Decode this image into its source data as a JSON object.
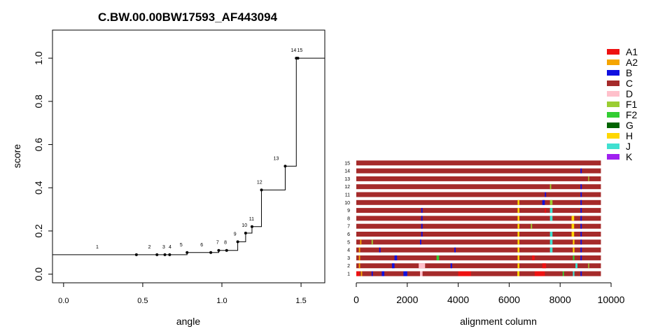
{
  "colors": {
    "A1": "#ee1111",
    "A2": "#f5a500",
    "B": "#1010e0",
    "C": "#a52a2a",
    "D": "#ffc0cb",
    "F1": "#9acd32",
    "F2": "#32cd32",
    "G": "#006400",
    "H": "#ffd700",
    "J": "#40e0d0",
    "K": "#a020f0"
  },
  "chart_data": [
    {
      "type": "line",
      "step": true,
      "title": "C.BW.00.00BW17593_AF443094",
      "xlabel": "angle",
      "ylabel": "score",
      "xlim": [
        -0.07,
        1.65
      ],
      "ylim": [
        -0.04,
        1.13
      ],
      "xticks": [
        "0.0",
        "0.5",
        "1.0",
        "1.5"
      ],
      "yticks": [
        "0.0",
        "0.2",
        "0.4",
        "0.6",
        "0.8",
        "1.0"
      ],
      "points": [
        {
          "label": "1",
          "x": 0.46,
          "y": 0.09
        },
        {
          "label": "2",
          "x": 0.59,
          "y": 0.09
        },
        {
          "label": "3",
          "x": 0.64,
          "y": 0.09
        },
        {
          "label": "4",
          "x": 0.67,
          "y": 0.09
        },
        {
          "label": "5",
          "x": 0.78,
          "y": 0.1
        },
        {
          "label": "6",
          "x": 0.93,
          "y": 0.1
        },
        {
          "label": "7",
          "x": 0.98,
          "y": 0.11
        },
        {
          "label": "8",
          "x": 1.03,
          "y": 0.11
        },
        {
          "label": "9",
          "x": 1.1,
          "y": 0.15
        },
        {
          "label": "10",
          "x": 1.15,
          "y": 0.19
        },
        {
          "label": "11",
          "x": 1.19,
          "y": 0.22
        },
        {
          "label": "12",
          "x": 1.25,
          "y": 0.39
        },
        {
          "label": "13",
          "x": 1.4,
          "y": 0.5
        },
        {
          "label": "14",
          "x": 1.47,
          "y": 1.0
        },
        {
          "label": "15",
          "x": 1.48,
          "y": 1.0
        }
      ]
    },
    {
      "type": "bar",
      "orientation": "horizontal",
      "xlabel": "alignment column",
      "xlim": [
        0,
        10000
      ],
      "xticks": [
        "0",
        "2000",
        "4000",
        "6000",
        "8000",
        "10000"
      ],
      "row_labels": [
        "1",
        "2",
        "3",
        "4",
        "5",
        "6",
        "7",
        "8",
        "9",
        "10",
        "11",
        "12",
        "13",
        "14",
        "15"
      ],
      "row_end": 9600,
      "base_subtype": "C",
      "legend": [
        "A1",
        "A2",
        "B",
        "C",
        "D",
        "F1",
        "F2",
        "G",
        "H",
        "J",
        "K"
      ],
      "segments": [
        {
          "row": 1,
          "from": 0,
          "to": 130,
          "subtype": "A1"
        },
        {
          "row": 1,
          "from": 180,
          "to": 230,
          "subtype": "A2"
        },
        {
          "row": 1,
          "from": 600,
          "to": 650,
          "subtype": "B"
        },
        {
          "row": 1,
          "from": 1000,
          "to": 1100,
          "subtype": "B"
        },
        {
          "row": 1,
          "from": 1850,
          "to": 2000,
          "subtype": "B"
        },
        {
          "row": 1,
          "from": 2500,
          "to": 2600,
          "subtype": "D"
        },
        {
          "row": 1,
          "from": 4000,
          "to": 4500,
          "subtype": "A1"
        },
        {
          "row": 1,
          "from": 6320,
          "to": 6400,
          "subtype": "H"
        },
        {
          "row": 1,
          "from": 7000,
          "to": 7400,
          "subtype": "A1"
        },
        {
          "row": 1,
          "from": 8100,
          "to": 8150,
          "subtype": "F2"
        },
        {
          "row": 1,
          "from": 8500,
          "to": 8560,
          "subtype": "J"
        },
        {
          "row": 1,
          "from": 8800,
          "to": 8850,
          "subtype": "B"
        },
        {
          "row": 2,
          "from": 100,
          "to": 150,
          "subtype": "A2"
        },
        {
          "row": 2,
          "from": 1400,
          "to": 1500,
          "subtype": "B"
        },
        {
          "row": 2,
          "from": 2450,
          "to": 2700,
          "subtype": "D"
        },
        {
          "row": 2,
          "from": 3700,
          "to": 3760,
          "subtype": "B"
        },
        {
          "row": 2,
          "from": 6330,
          "to": 6400,
          "subtype": "H"
        },
        {
          "row": 2,
          "from": 7300,
          "to": 7450,
          "subtype": "A1"
        },
        {
          "row": 2,
          "from": 8600,
          "to": 8680,
          "subtype": "J"
        },
        {
          "row": 2,
          "from": 9100,
          "to": 9140,
          "subtype": "F1"
        },
        {
          "row": 3,
          "from": 100,
          "to": 150,
          "subtype": "A2"
        },
        {
          "row": 3,
          "from": 1500,
          "to": 1600,
          "subtype": "B"
        },
        {
          "row": 3,
          "from": 3150,
          "to": 3250,
          "subtype": "F2"
        },
        {
          "row": 3,
          "from": 6330,
          "to": 6400,
          "subtype": "H"
        },
        {
          "row": 3,
          "from": 6900,
          "to": 7000,
          "subtype": "A1"
        },
        {
          "row": 3,
          "from": 8500,
          "to": 8560,
          "subtype": "F2"
        },
        {
          "row": 3,
          "from": 8800,
          "to": 8850,
          "subtype": "B"
        },
        {
          "row": 4,
          "from": 100,
          "to": 150,
          "subtype": "A2"
        },
        {
          "row": 4,
          "from": 900,
          "to": 950,
          "subtype": "B"
        },
        {
          "row": 4,
          "from": 3850,
          "to": 3900,
          "subtype": "B"
        },
        {
          "row": 4,
          "from": 6330,
          "to": 6400,
          "subtype": "H"
        },
        {
          "row": 4,
          "from": 7600,
          "to": 7700,
          "subtype": "J"
        },
        {
          "row": 4,
          "from": 8500,
          "to": 8560,
          "subtype": "H"
        },
        {
          "row": 4,
          "from": 8800,
          "to": 8850,
          "subtype": "B"
        },
        {
          "row": 5,
          "from": 150,
          "to": 200,
          "subtype": "A2"
        },
        {
          "row": 5,
          "from": 600,
          "to": 650,
          "subtype": "F1"
        },
        {
          "row": 5,
          "from": 2500,
          "to": 2550,
          "subtype": "B"
        },
        {
          "row": 5,
          "from": 6330,
          "to": 6400,
          "subtype": "H"
        },
        {
          "row": 5,
          "from": 7600,
          "to": 7700,
          "subtype": "J"
        },
        {
          "row": 5,
          "from": 8500,
          "to": 8560,
          "subtype": "H"
        },
        {
          "row": 5,
          "from": 8800,
          "to": 8850,
          "subtype": "B"
        },
        {
          "row": 6,
          "from": 2550,
          "to": 2600,
          "subtype": "B"
        },
        {
          "row": 6,
          "from": 6330,
          "to": 6400,
          "subtype": "H"
        },
        {
          "row": 6,
          "from": 7600,
          "to": 7700,
          "subtype": "J"
        },
        {
          "row": 6,
          "from": 8450,
          "to": 8550,
          "subtype": "H"
        },
        {
          "row": 6,
          "from": 8800,
          "to": 8850,
          "subtype": "B"
        },
        {
          "row": 7,
          "from": 2550,
          "to": 2600,
          "subtype": "B"
        },
        {
          "row": 7,
          "from": 6330,
          "to": 6400,
          "subtype": "H"
        },
        {
          "row": 7,
          "from": 6850,
          "to": 6900,
          "subtype": "F1"
        },
        {
          "row": 7,
          "from": 8450,
          "to": 8550,
          "subtype": "H"
        },
        {
          "row": 7,
          "from": 8800,
          "to": 8850,
          "subtype": "B"
        },
        {
          "row": 8,
          "from": 2550,
          "to": 2600,
          "subtype": "B"
        },
        {
          "row": 8,
          "from": 6330,
          "to": 6400,
          "subtype": "H"
        },
        {
          "row": 8,
          "from": 7600,
          "to": 7700,
          "subtype": "J"
        },
        {
          "row": 8,
          "from": 8450,
          "to": 8550,
          "subtype": "H"
        },
        {
          "row": 8,
          "from": 8800,
          "to": 8850,
          "subtype": "B"
        },
        {
          "row": 9,
          "from": 2550,
          "to": 2600,
          "subtype": "B"
        },
        {
          "row": 9,
          "from": 6330,
          "to": 6400,
          "subtype": "H"
        },
        {
          "row": 9,
          "from": 7400,
          "to": 7450,
          "subtype": "A1"
        },
        {
          "row": 9,
          "from": 7600,
          "to": 7700,
          "subtype": "J"
        },
        {
          "row": 9,
          "from": 8800,
          "to": 8850,
          "subtype": "B"
        },
        {
          "row": 10,
          "from": 6330,
          "to": 6400,
          "subtype": "H"
        },
        {
          "row": 10,
          "from": 7300,
          "to": 7400,
          "subtype": "B"
        },
        {
          "row": 10,
          "from": 7600,
          "to": 7700,
          "subtype": "F1"
        },
        {
          "row": 10,
          "from": 8800,
          "to": 8850,
          "subtype": "B"
        },
        {
          "row": 11,
          "from": 7400,
          "to": 7450,
          "subtype": "B"
        },
        {
          "row": 11,
          "from": 8800,
          "to": 8850,
          "subtype": "B"
        },
        {
          "row": 12,
          "from": 7600,
          "to": 7650,
          "subtype": "F1"
        },
        {
          "row": 12,
          "from": 8800,
          "to": 8850,
          "subtype": "B"
        },
        {
          "row": 13,
          "from": 9100,
          "to": 9140,
          "subtype": "F1"
        },
        {
          "row": 14,
          "from": 8800,
          "to": 8850,
          "subtype": "B"
        }
      ]
    }
  ]
}
